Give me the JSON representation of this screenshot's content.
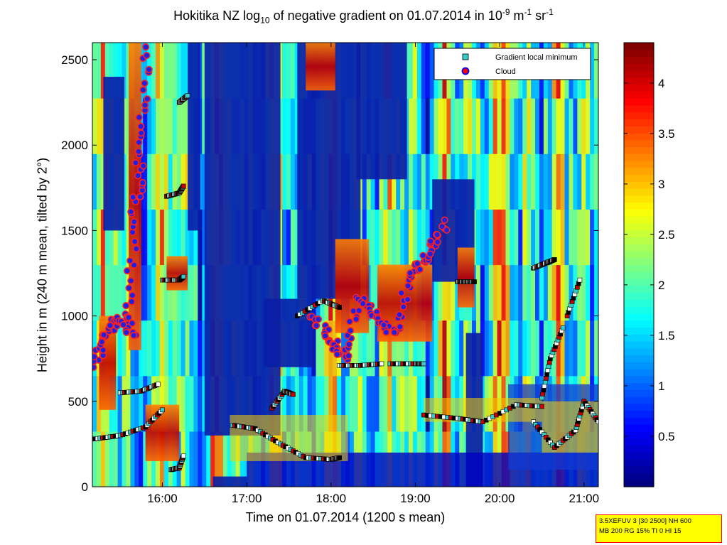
{
  "title": {
    "pre": "Hokitika NZ log",
    "sub": "10",
    "mid": " of negative gradient on 01.07.2014 in 10",
    "sup1": "-9",
    "mid2": " m",
    "sup2": "-1",
    "mid3": " sr",
    "sup3": "-1"
  },
  "xlabel": "Time on 01.07.2014 (1200 s mean)",
  "ylabel": "Height in m (240 m mean, tilted by 2°)",
  "legend": {
    "items": [
      {
        "label": "Gradient local minimum",
        "marker": "square",
        "color": "#33cccc"
      },
      {
        "label": "Cloud",
        "marker": "circle",
        "color": "#ff0000",
        "edge": "#0000ff"
      }
    ]
  },
  "infobox": {
    "line1": "3.5XEFUV 3 [30 2500] NH 600",
    "line2": "MB 200 RG 15% TI 0 HI 15"
  },
  "chart_data": {
    "type": "heatmap",
    "x_ticks": [
      "16:00",
      "17:00",
      "18:00",
      "19:00",
      "20:00",
      "21:00"
    ],
    "y_ticks": [
      0,
      500,
      1000,
      1500,
      2000,
      2500
    ],
    "xlim_hours": [
      15.17,
      21.17
    ],
    "ylim": [
      0,
      2600
    ],
    "colorbar_ticks": [
      0.5,
      1,
      1.5,
      2,
      2.5,
      3,
      3.5,
      4
    ],
    "colorbar_range": [
      0,
      4.4
    ],
    "colormap": "jet",
    "gradient_minimum_tracks": [
      {
        "t": [
          15.2,
          15.5,
          15.8,
          16.0
        ],
        "h": [
          280,
          300,
          350,
          450
        ]
      },
      {
        "t": [
          15.5,
          15.75,
          15.95
        ],
        "h": [
          550,
          560,
          600
        ]
      },
      {
        "t": [
          16.0,
          16.2,
          16.25
        ],
        "h": [
          1210,
          1210,
          1230
        ]
      },
      {
        "t": [
          16.05,
          16.2,
          16.25
        ],
        "h": [
          1700,
          1720,
          1760
        ]
      },
      {
        "t": [
          16.2,
          16.3
        ],
        "h": [
          2250,
          2290
        ]
      },
      {
        "t": [
          16.1,
          16.2,
          16.25
        ],
        "h": [
          100,
          110,
          180
        ]
      },
      {
        "t": [
          16.83,
          17.1,
          17.4,
          17.7,
          18.0,
          18.1
        ],
        "h": [
          360,
          340,
          250,
          170,
          160,
          170
        ]
      },
      {
        "t": [
          17.3,
          17.45,
          17.55
        ],
        "h": [
          460,
          560,
          540
        ]
      },
      {
        "t": [
          17.6,
          17.9,
          18.1
        ],
        "h": [
          1000,
          1090,
          1050
        ]
      },
      {
        "t": [
          18.1,
          18.35,
          18.6
        ],
        "h": [
          710,
          710,
          720
        ]
      },
      {
        "t": [
          18.7,
          19.0,
          19.1
        ],
        "h": [
          720,
          720,
          720
        ]
      },
      {
        "t": [
          19.1,
          19.5,
          19.8,
          20.2,
          20.5
        ],
        "h": [
          420,
          400,
          380,
          480,
          470
        ]
      },
      {
        "t": [
          19.5,
          19.6,
          19.7
        ],
        "h": [
          1200,
          1200,
          1200
        ]
      },
      {
        "t": [
          20.4,
          20.65,
          20.9,
          21.0,
          21.17
        ],
        "h": [
          380,
          230,
          330,
          500,
          380
        ]
      },
      {
        "t": [
          20.5,
          20.6,
          20.75
        ],
        "h": [
          520,
          750,
          930
        ]
      },
      {
        "t": [
          20.8,
          20.95
        ],
        "h": [
          1000,
          1210
        ]
      },
      {
        "t": [
          20.4,
          20.55,
          20.65
        ],
        "h": [
          1280,
          1310,
          1330
        ]
      }
    ],
    "cloud_tracks": [
      {
        "t": [
          15.2,
          15.35,
          15.5,
          15.65
        ],
        "h": [
          700,
          900,
          1000,
          900
        ]
      },
      {
        "t": [
          15.6,
          15.68,
          15.75,
          15.82
        ],
        "h": [
          1000,
          1600,
          2000,
          2570
        ]
      },
      {
        "t": [
          17.8,
          18.0,
          18.15,
          18.35,
          18.55,
          18.75,
          18.95,
          19.15,
          19.35
        ],
        "h": [
          1000,
          850,
          750,
          1100,
          1000,
          900,
          1250,
          1350,
          1550
        ]
      }
    ]
  }
}
